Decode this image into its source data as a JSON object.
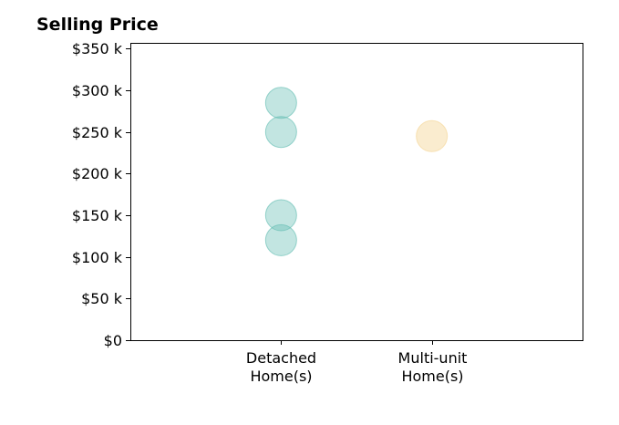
{
  "chart_data": {
    "type": "scatter",
    "title": "Selling Price",
    "xlabel": "",
    "ylabel": "",
    "categories": [
      "Detached\nHome(s)",
      "Multi-unit\nHome(s)"
    ],
    "xlim": [
      -1,
      2
    ],
    "ylim": [
      0,
      357000
    ],
    "yticks": [
      0,
      50000,
      100000,
      150000,
      200000,
      250000,
      300000,
      350000
    ],
    "ytick_labels": [
      "$0",
      "$50 k",
      "$100 k",
      "$150 k",
      "$200 k",
      "$250 k",
      "$300 k",
      "$350 k"
    ],
    "grid": false,
    "series": [
      {
        "category_index": 0,
        "color": "#66bfb4",
        "opacity": 0.4,
        "values": [
          285000,
          250000,
          150000,
          120000
        ]
      },
      {
        "category_index": 1,
        "color": "#f5d9a0",
        "opacity": 0.5,
        "values": [
          245000
        ]
      }
    ]
  }
}
